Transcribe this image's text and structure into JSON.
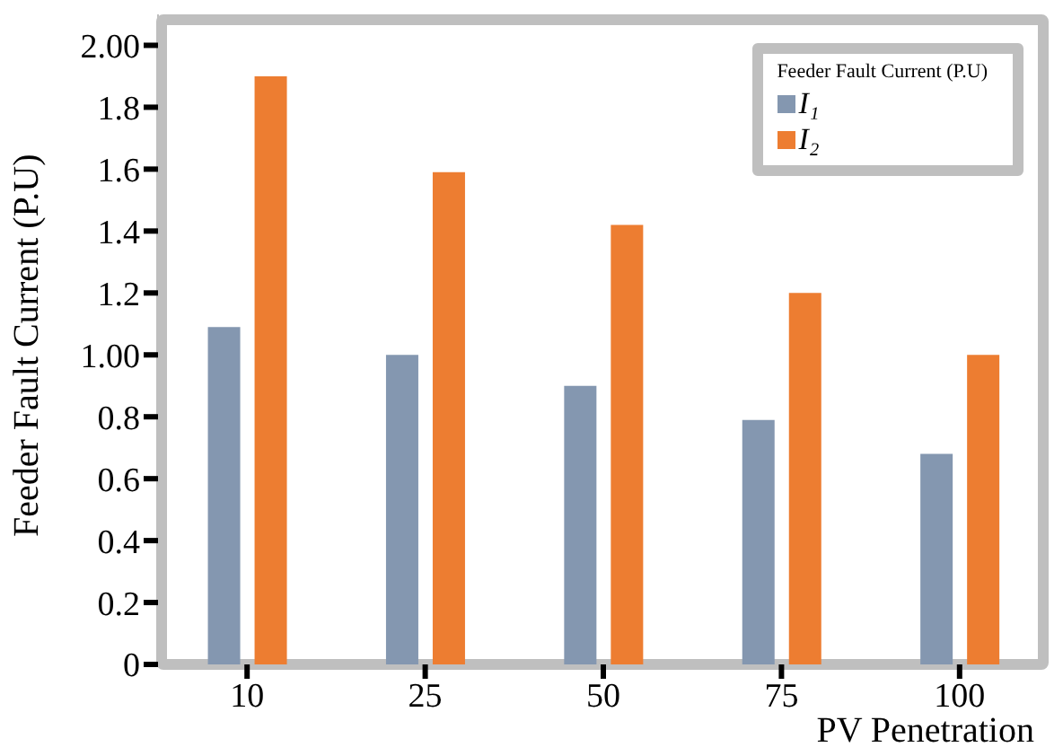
{
  "chart_data": {
    "type": "bar",
    "categories": [
      "10",
      "25",
      "50",
      "75",
      "100"
    ],
    "xlabel": "PV Penetration",
    "ylabel": "Feeder Fault Current (P.U)",
    "legend_title": "Feeder Fault Current (P.U)",
    "series": [
      {
        "name": "I₁",
        "color": "#8497b0",
        "values": [
          1.09,
          1.0,
          0.9,
          0.79,
          0.68
        ]
      },
      {
        "name": "I₂",
        "color": "#ed7d31",
        "values": [
          1.9,
          1.59,
          1.42,
          1.2,
          1.0
        ]
      }
    ],
    "ylim": [
      0,
      2.1
    ],
    "yticks": [
      0,
      0.2,
      0.4,
      0.6,
      0.8,
      {
        "value": 1,
        "label": "1.00"
      },
      1.2,
      1.4,
      1.6,
      1.8,
      {
        "value": 2,
        "label": "2.00"
      }
    ],
    "legend": "top right",
    "grid": false
  }
}
